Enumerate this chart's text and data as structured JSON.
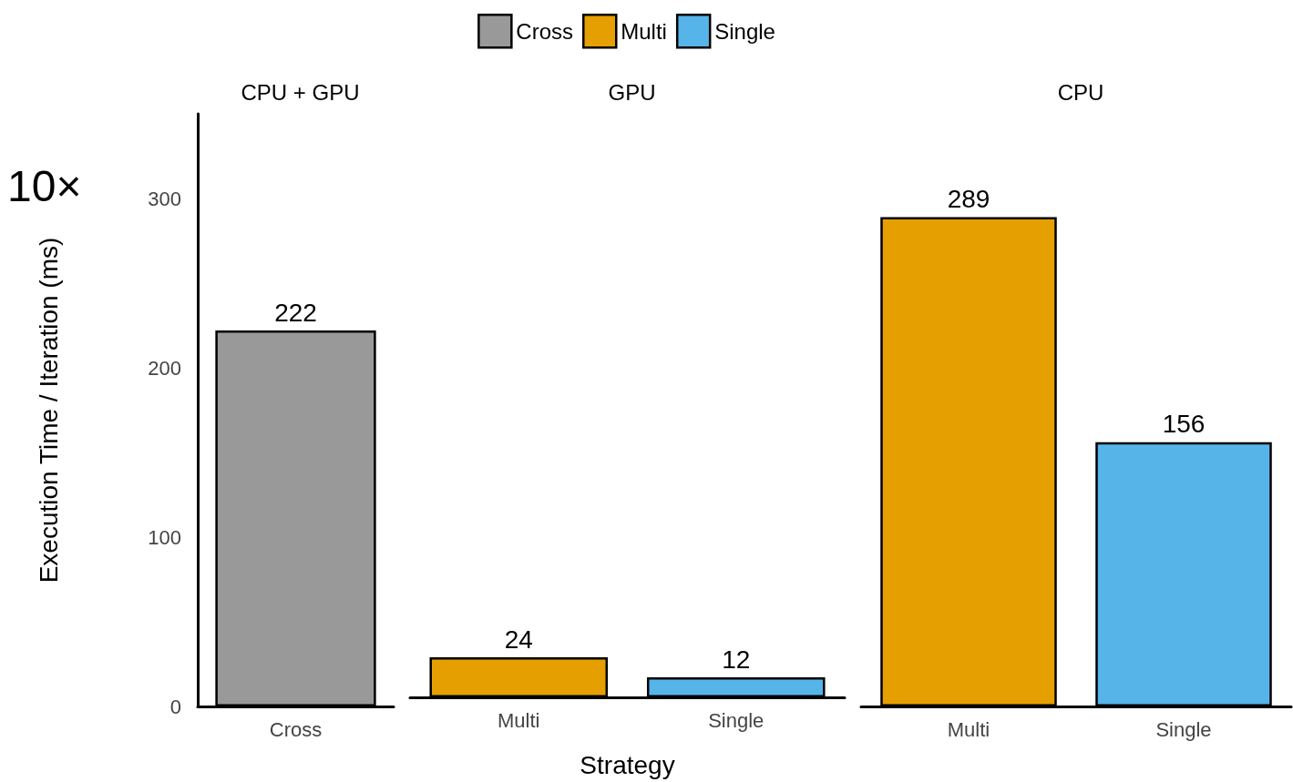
{
  "chart_data": [
    {
      "type": "bar",
      "title": "CPU + GPU",
      "ylabel": "Execution Time / Iteration (ms)",
      "annotations": [
        "10×"
      ],
      "categories": [
        "Cross"
      ],
      "series": [
        {
          "color": "#999999",
          "values": [
            222
          ]
        }
      ],
      "ylim": [
        0,
        350
      ],
      "yticks": [
        0,
        100,
        200,
        300
      ],
      "data_labels": true,
      "grid": false,
      "legend": false
    },
    {
      "type": "bar",
      "title": "GPU",
      "xlabel": "Strategy",
      "categories": [
        "Multi",
        "Single"
      ],
      "series": [
        {
          "name": "Cross",
          "color": "#999999",
          "values": [
            null,
            null
          ]
        },
        {
          "name": "Multi",
          "color": "#e69f00",
          "values": [
            24,
            null
          ]
        },
        {
          "name": "Single",
          "color": "#56b4e9",
          "values": [
            null,
            12
          ]
        }
      ],
      "tick_labels": "x",
      "data_labels": true,
      "grid": false,
      "legend": "top"
    },
    {
      "type": "bar",
      "title": "CPU",
      "categories": [
        "Multi",
        "Single"
      ],
      "series": [
        {
          "color": "#e69f00",
          "values": [
            289,
            null
          ]
        },
        {
          "color": "#56b4e9",
          "values": [
            null,
            156
          ]
        }
      ],
      "tick_labels": "x",
      "data_labels": true,
      "grid": false,
      "legend": false
    }
  ]
}
